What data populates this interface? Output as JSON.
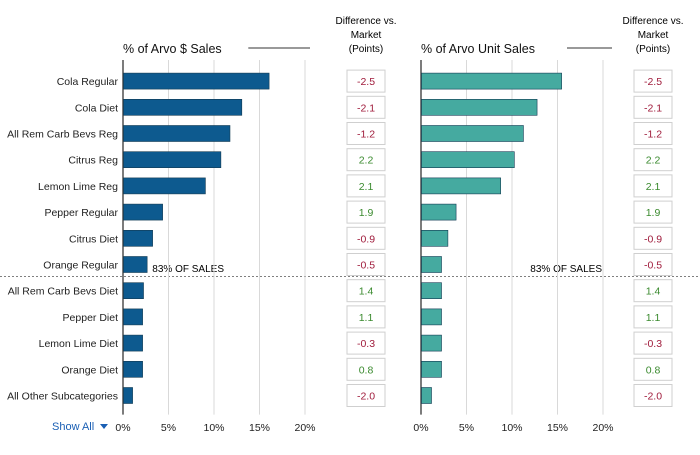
{
  "diff_header": [
    "Difference vs.",
    "Market",
    "(Points)"
  ],
  "marker_label": "83% OF SALES",
  "show_all": "Show All",
  "colors": {
    "dollar_bar": "#0d5a8f",
    "unit_bar": "#45aaa0",
    "positive": "#3a8a2e",
    "negative": "#a01c3c",
    "link": "#1a5fb4"
  },
  "chart_data": {
    "type": "bar",
    "orientation": "horizontal",
    "categories": [
      "Cola Regular",
      "Cola Diet",
      "All Rem Carb Bevs Reg",
      "Citrus Reg",
      "Lemon Lime Reg",
      "Pepper Regular",
      "Citrus Diet",
      "Orange Regular",
      "All Rem Carb Bevs Diet",
      "Pepper Diet",
      "Lemon Lime Diet",
      "Orange Diet",
      "All Other Subcategories"
    ],
    "panels": [
      {
        "title": "% of Arvo $ Sales",
        "values": [
          16.0,
          13.0,
          11.7,
          10.7,
          9.0,
          4.3,
          3.2,
          2.6,
          2.2,
          2.1,
          2.1,
          2.1,
          1.0
        ],
        "differences": [
          "-2.5",
          "-2.1",
          "-1.2",
          "2.2",
          "2.1",
          "1.9",
          "-0.9",
          "-0.5",
          "1.4",
          "1.1",
          "-0.3",
          "0.8",
          "-2.0"
        ]
      },
      {
        "title": "% of Arvo Unit Sales",
        "values": [
          15.4,
          12.7,
          11.2,
          10.2,
          8.7,
          3.8,
          2.9,
          2.2,
          2.2,
          2.2,
          2.2,
          2.2,
          1.1
        ],
        "differences": [
          "-2.5",
          "-2.1",
          "-1.2",
          "2.2",
          "2.1",
          "1.9",
          "-0.9",
          "-0.5",
          "1.4",
          "1.1",
          "-0.3",
          "0.8",
          "-2.0"
        ]
      }
    ],
    "xlim": [
      0,
      20
    ],
    "x_ticks": [
      "0%",
      "5%",
      "10%",
      "15%",
      "20%"
    ],
    "grid": true,
    "cutoff_after_category": "Orange Regular"
  }
}
